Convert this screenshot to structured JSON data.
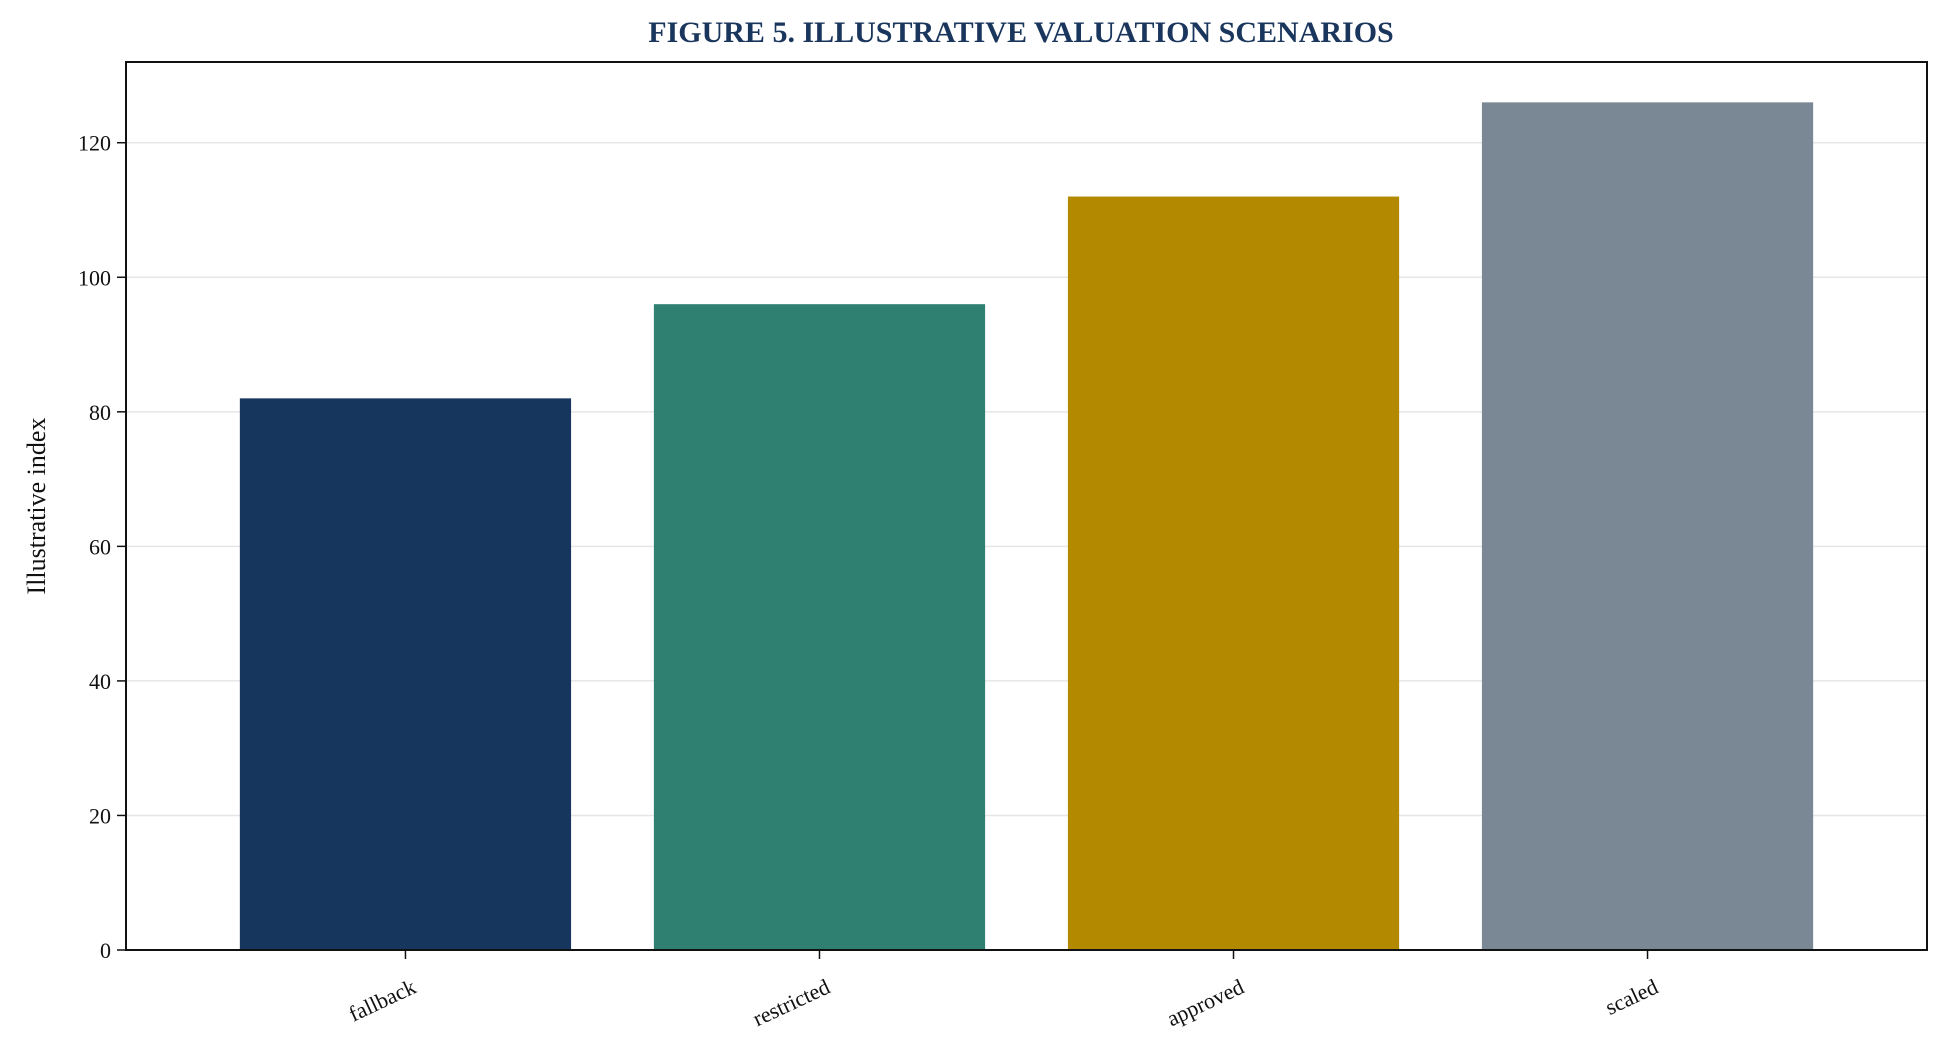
{
  "chart_data": {
    "type": "bar",
    "title": "FIGURE 5. ILLUSTRATIVE VALUATION SCENARIOS",
    "xlabel": "",
    "ylabel": "Illustrative index",
    "categories": [
      "fallback",
      "restricted",
      "approved",
      "scaled"
    ],
    "values": [
      82,
      96,
      112,
      126
    ],
    "colors": [
      "#17365d",
      "#2f8070",
      "#b38900",
      "#7a8795"
    ],
    "ylim": [
      0,
      132
    ],
    "yticks": [
      0,
      20,
      40,
      60,
      80,
      100,
      120
    ],
    "grid": "y",
    "legend": "none",
    "title_color": "#1a365d"
  }
}
